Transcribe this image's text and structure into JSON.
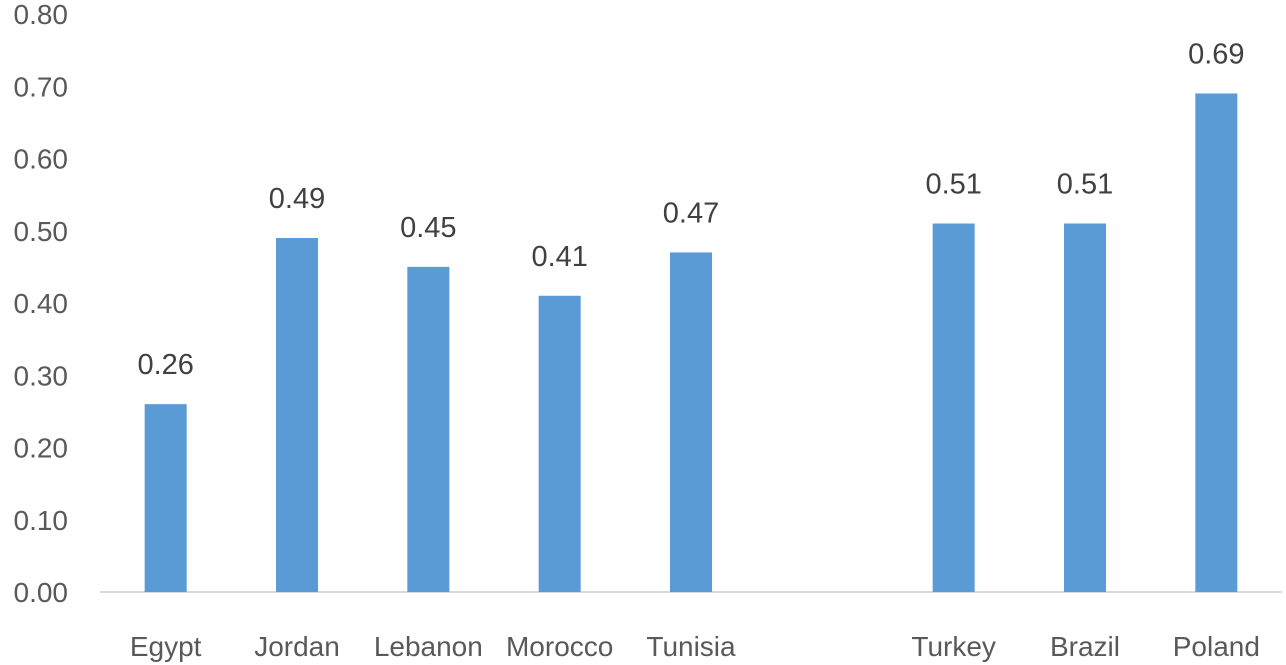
{
  "chart_data": {
    "type": "bar",
    "categories": [
      "Egypt",
      "Jordan",
      "Lebanon",
      "Morocco",
      "Tunisia",
      "",
      "Turkey",
      "Brazil",
      "Poland"
    ],
    "values": [
      0.26,
      0.49,
      0.45,
      0.41,
      0.47,
      null,
      0.51,
      0.51,
      0.69
    ],
    "data_labels": [
      "0.26",
      "0.49",
      "0.45",
      "0.41",
      "0.47",
      "",
      "0.51",
      "0.51",
      "0.69"
    ],
    "yticks": [
      "0.00",
      "0.10",
      "0.20",
      "0.30",
      "0.40",
      "0.50",
      "0.60",
      "0.70",
      "0.80"
    ],
    "ylim": [
      0,
      0.8
    ],
    "grid": false,
    "legend": "none",
    "bar_color": "#5B9BD5"
  }
}
